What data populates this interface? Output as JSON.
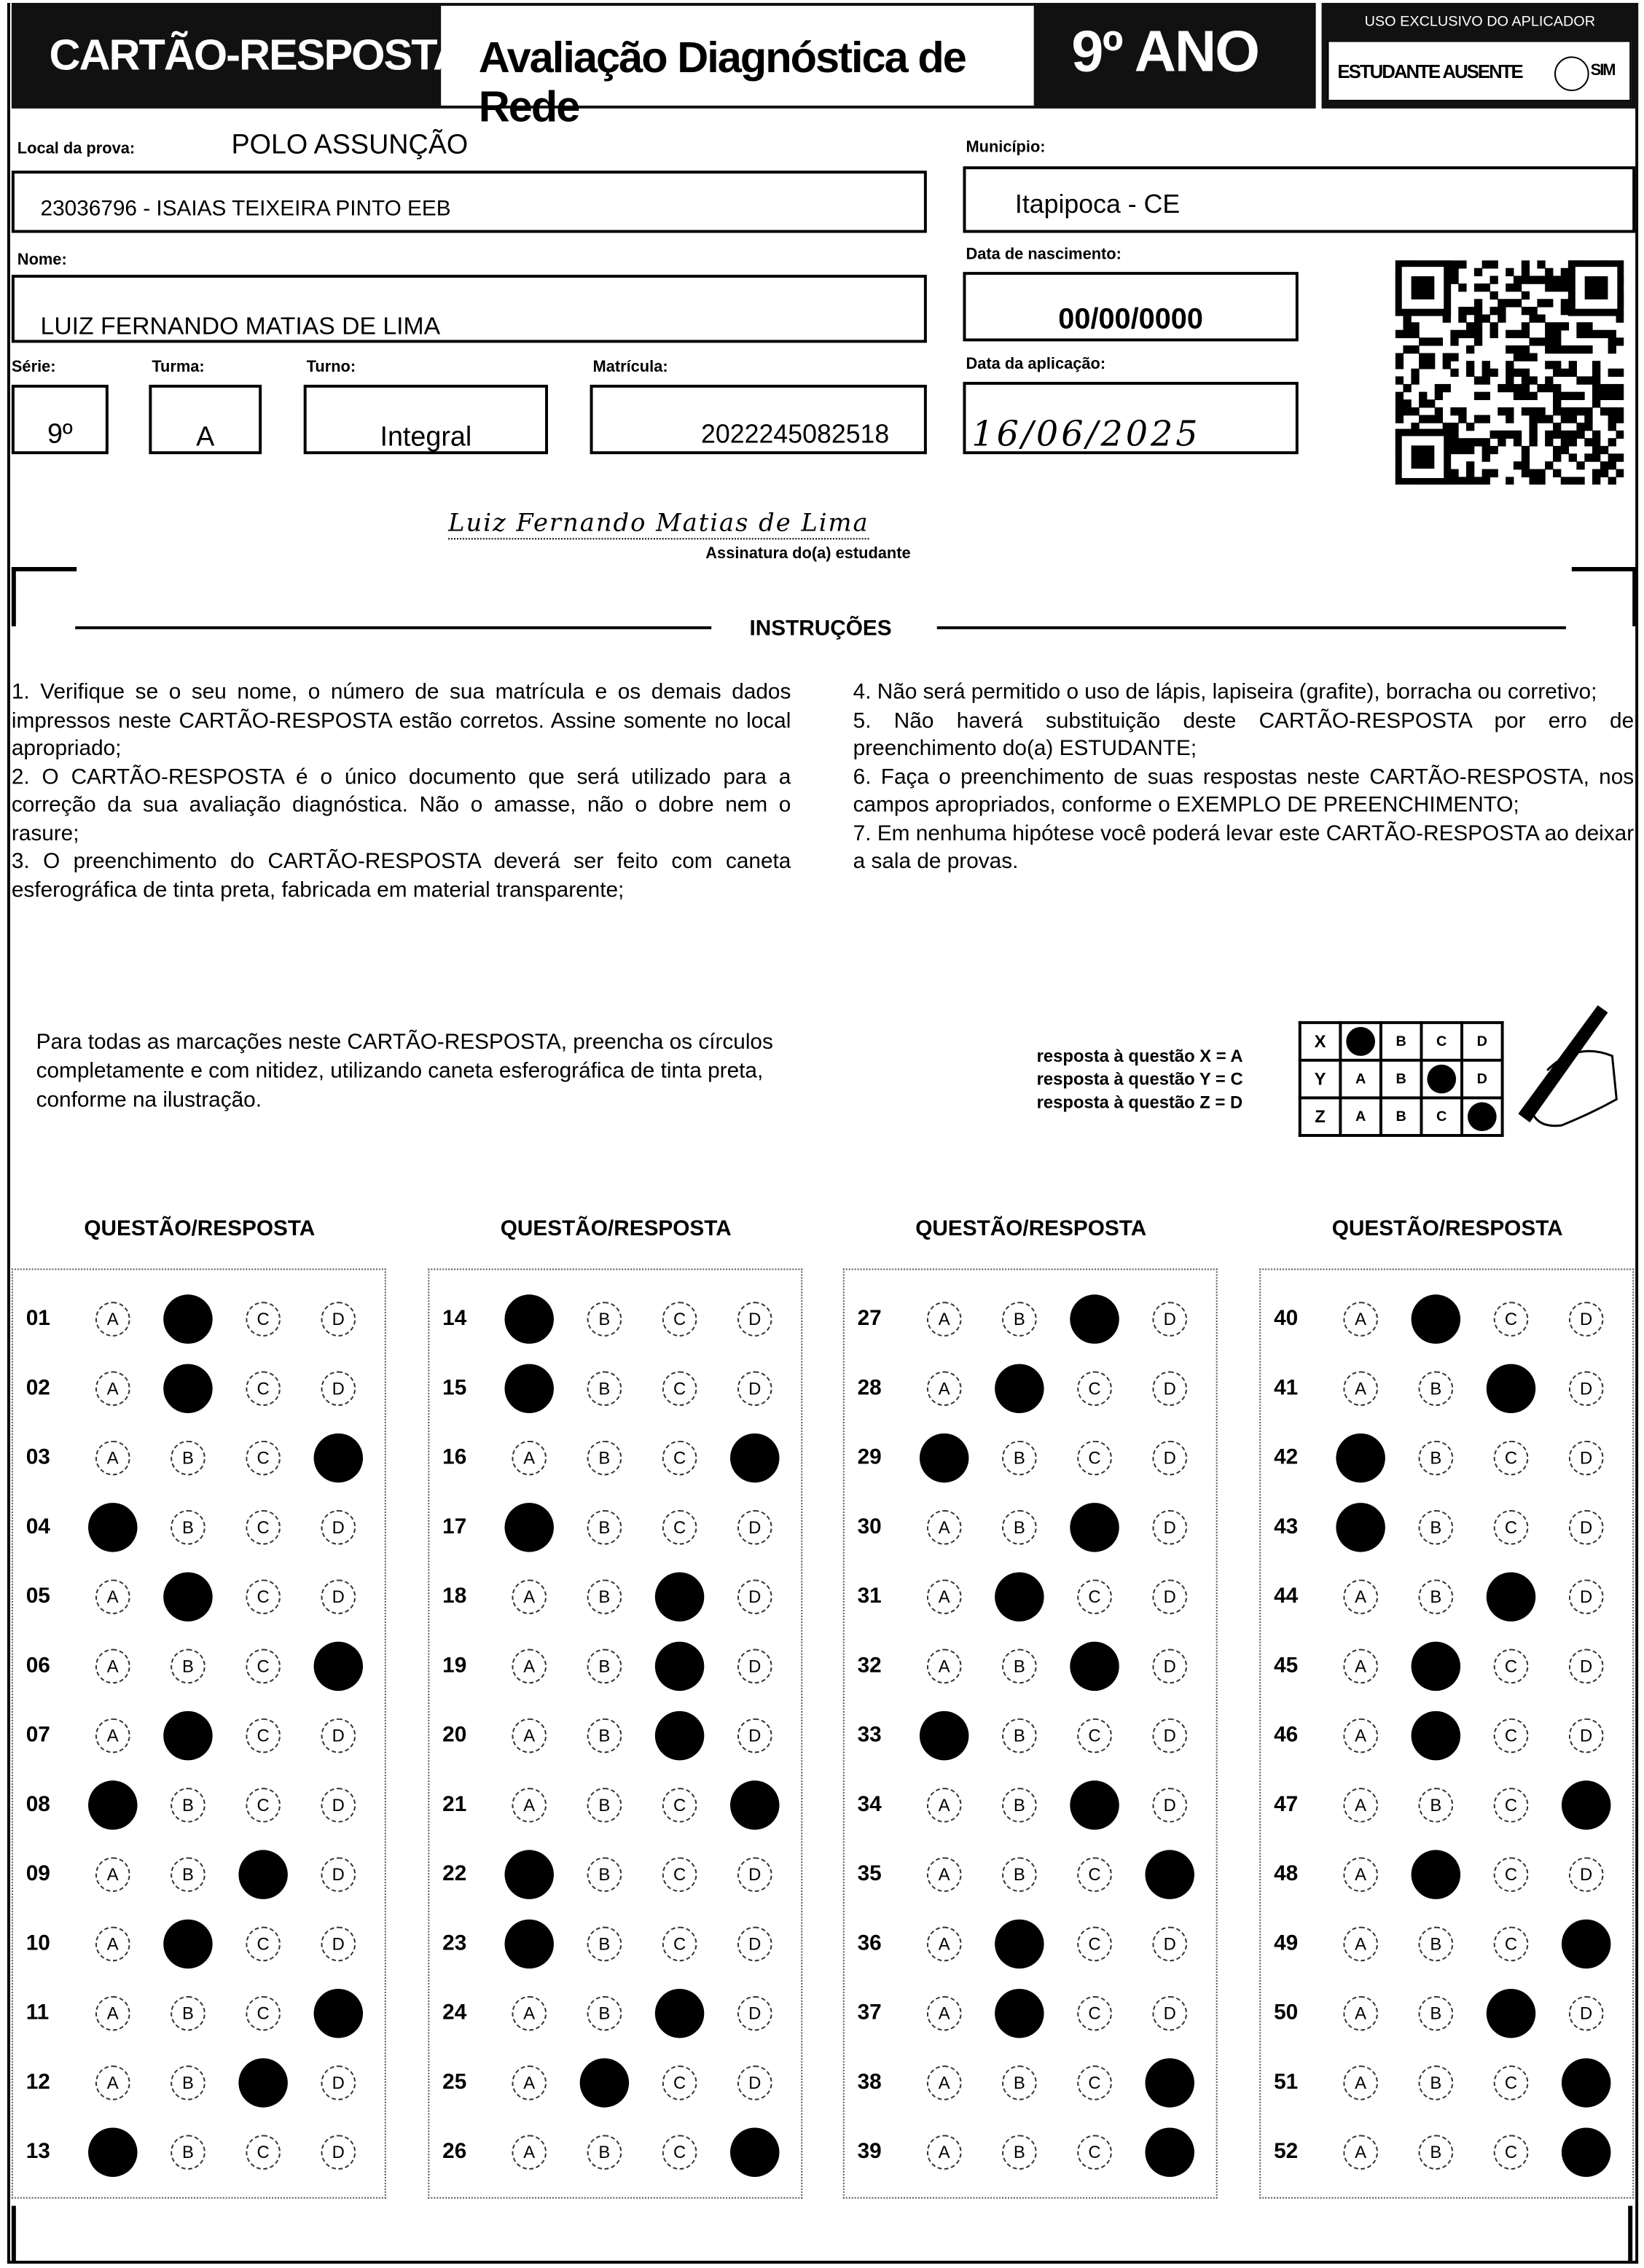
{
  "header": {
    "title": "CARTÃO-RESPOSTA",
    "subtitle": "Avaliação Diagnóstica de Rede",
    "grade": "9º ANO",
    "applicator_label": "USO EXCLUSIVO DO APLICADOR",
    "absent_label": "ESTUDANTE AUSENTE",
    "absent_option": "SIM",
    "absent_checked": false
  },
  "fields": {
    "local_label": "Local da prova:",
    "local_value": "POLO ASSUNÇÃO",
    "school_value": "23036796 - ISAIAS TEIXEIRA PINTO EEB",
    "municipio_label": "Município:",
    "municipio_value": "Itapipoca - CE",
    "nome_label": "Nome:",
    "nome_value": "LUIZ FERNANDO MATIAS DE LIMA",
    "nascimento_label": "Data de nascimento:",
    "nascimento_value": "00/00/0000",
    "serie_label": "Série:",
    "serie_value": "9º",
    "turma_label": "Turma:",
    "turma_value": "A",
    "turno_label": "Turno:",
    "turno_value": "Integral",
    "matricula_label": "Matrícula:",
    "matricula_value": "2022245082518",
    "aplicacao_label": "Data da aplicação:",
    "aplicacao_value": "16/06/2025",
    "signature_value": "Luiz Fernando Matias de Lima",
    "signature_label": "Assinatura do(a) estudante"
  },
  "instructions": {
    "title": "INSTRUÇÕES",
    "left": "1. Verifique se o seu nome, o número de sua matrícula e os demais dados impressos neste CARTÃO-RESPOSTA estão corretos. Assine somente no local apropriado;\n2. O CARTÃO-RESPOSTA é o único documento que será utilizado para a correção da sua avaliação diagnóstica. Não o amasse, não o dobre nem o rasure;\n3. O preenchimento do CARTÃO-RESPOSTA deverá ser feito com caneta esferográfica de tinta preta, fabricada em material transparente;",
    "right": "4. Não será permitido o uso de lápis, lapiseira (grafite), borracha ou corretivo;\n5. Não haverá substituição deste CARTÃO-RESPOSTA por erro de preenchimento do(a) ESTUDANTE;\n6. Faça o preenchimento de suas respostas neste CARTÃO-RESPOSTA, nos campos apropriados, conforme o EXEMPLO DE PREENCHIMENTO;\n7. Em nenhuma hipótese você poderá levar este CARTÃO-RESPOSTA ao deixar a sala de provas.",
    "fill_note": "Para todas as marcações neste CARTÃO-RESPOSTA, preencha os círculos completamente e com nitidez, utilizando caneta esferográfica de tinta preta, conforme na ilustração.",
    "example_lines": [
      "resposta à questão X = A",
      "resposta à questão Y = C",
      "resposta à questão Z = D"
    ],
    "example_rows": [
      {
        "q": "X",
        "mark": "A"
      },
      {
        "q": "Y",
        "mark": "C"
      },
      {
        "q": "Z",
        "mark": "D"
      }
    ]
  },
  "answers": {
    "header": "QUESTÃO/RESPOSTA",
    "options": [
      "A",
      "B",
      "C",
      "D"
    ],
    "marked": [
      "B",
      "B",
      "D",
      "A",
      "B",
      "D",
      "B",
      "A",
      "C",
      "B",
      "D",
      "C",
      "A",
      "A",
      "A",
      "D",
      "A",
      "C",
      "C",
      "C",
      "D",
      "A",
      "A",
      "C",
      "B",
      "D",
      "C",
      "B",
      "A",
      "C",
      "B",
      "C",
      "A",
      "C",
      "D",
      "B",
      "B",
      "D",
      "D",
      "B",
      "C",
      "A",
      "A",
      "C",
      "B",
      "B",
      "D",
      "B",
      "D",
      "C",
      "D",
      "D"
    ]
  }
}
